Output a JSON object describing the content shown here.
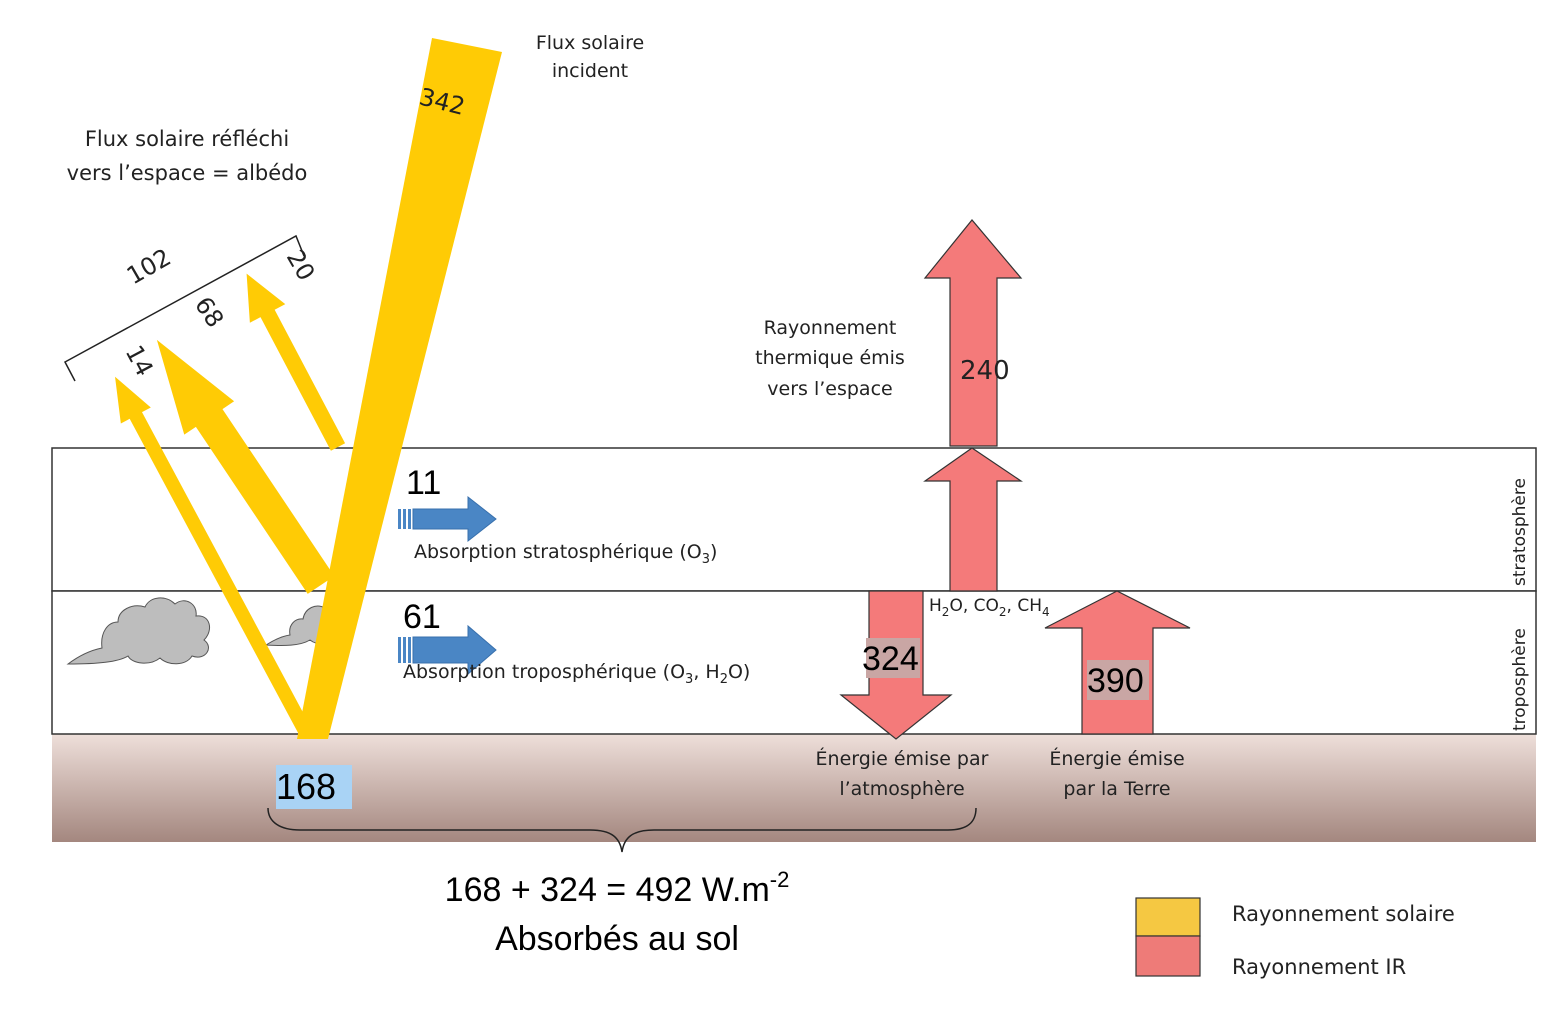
{
  "labels": {
    "incident_title_1": "Flux solaire",
    "incident_title_2": "incident",
    "reflected_title_1": "Flux solaire réfléchi",
    "reflected_title_2": "vers l’espace = albédo",
    "thermal_title_1": "Rayonnement",
    "thermal_title_2": "thermique émis",
    "thermal_title_3": "vers l’espace",
    "strat_absorption": "Absorption stratosphérique (O",
    "strat_absorption_sub": "3",
    "strat_absorption_end": ")",
    "trop_absorption": "Absorption troposphérique (O",
    "trop_absorption_sub1": "3",
    "trop_absorption_mid": ", H",
    "trop_absorption_sub2": "2",
    "trop_absorption_end": "O)",
    "gases_h2o": "H",
    "gases_h2o_sub": "2",
    "gases_h2o_end": "O, CO",
    "gases_co2_sub": "2",
    "gases_ch4": ", CH",
    "gases_ch4_sub": "4",
    "stratosphere": "stratosphère",
    "troposphere": "troposphère",
    "atm_emitted_1": "Énergie émise par",
    "atm_emitted_2": "l’atmosphère",
    "earth_emitted_1": "Énergie émise",
    "earth_emitted_2": "par la Terre",
    "sum_line": "168 + 324 = 492 W.m",
    "sum_exp": "-2",
    "sum_line2": "Absorbés au sol"
  },
  "values": {
    "incident": "342",
    "reflected_total": "102",
    "reflected_clouds": "68",
    "reflected_surface": "14",
    "reflected_atmo": "20",
    "strat_absorbed": "11",
    "trop_absorbed": "61",
    "ground_absorbed": "168",
    "thermal_space": "240",
    "atm_down": "324",
    "earth_up": "390"
  },
  "legend": [
    {
      "label": "Rayonnement solaire",
      "color": "#F5C842"
    },
    {
      "label": "Rayonnement IR",
      "color": "#EE7B78"
    }
  ],
  "colors": {
    "solar": "#FFCB05",
    "ir": "#F47A7A",
    "absorption": "#4A86C5",
    "cloud": "#BDBDBD",
    "ground_top": "#EEDFDA",
    "ground_bottom": "#A4877F",
    "highlight_blue": "#A9D3F5",
    "highlight_grey": "#C9A6A4"
  }
}
